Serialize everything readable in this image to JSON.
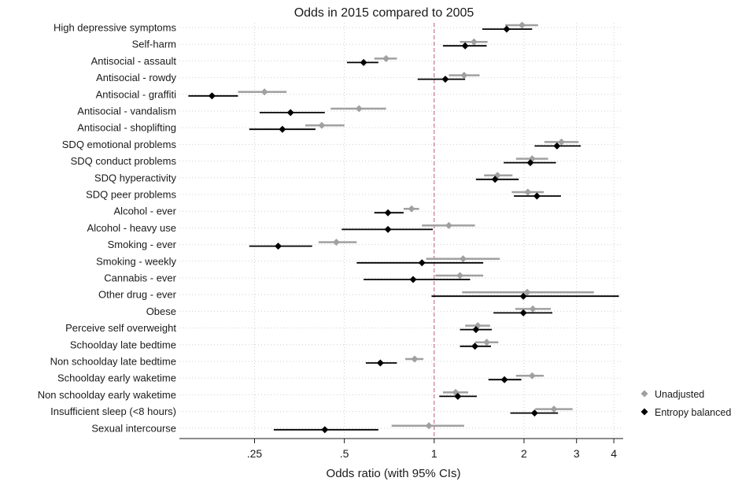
{
  "chart_data": {
    "type": "scatter",
    "subtype": "forest-plot",
    "title": "Odds in 2015 compared to 2005",
    "xlabel": "Odds ratio (with 95% CIs)",
    "ylabel": "",
    "xscale": "log",
    "xlim": [
      0.14,
      4.3
    ],
    "reference_line": 1,
    "xticks": [
      {
        "value": 0.25,
        "label": ".25"
      },
      {
        "value": 0.5,
        "label": ".5"
      },
      {
        "value": 1,
        "label": "1"
      },
      {
        "value": 2,
        "label": "2"
      },
      {
        "value": 3,
        "label": "3"
      },
      {
        "value": 4,
        "label": "4"
      }
    ],
    "grid": true,
    "legend_position": "bottom-right",
    "colors": {
      "unadjusted": "#a0a0a0",
      "balanced": "#000000",
      "reference": "#c05a86",
      "grid": "#d0d0d0"
    },
    "categories": [
      "High depressive symptoms",
      "Self-harm",
      "Antisocial - assault",
      "Antisocial - rowdy",
      "Antisocial - graffiti",
      "Antisocial - vandalism",
      "Antisocial - shoplifting",
      "SDQ emotional problems",
      "SDQ conduct problems",
      "SDQ hyperactivity",
      "SDQ peer problems",
      "Alcohol - ever",
      "Alcohol - heavy use",
      "Smoking - ever",
      "Smoking - weekly",
      "Cannabis - ever",
      "Other drug - ever",
      "Obese",
      "Perceive self overweight",
      "Schoolday late bedtime",
      "Non schoolday late bedtime",
      "Schoolday early waketime",
      "Non schoolday early waketime",
      "Insufficient sleep (<8 hours)",
      "Sexual intercourse"
    ],
    "series": [
      {
        "name": "Unadjusted",
        "marker": "diamond",
        "color": "#a0a0a0",
        "estimate": [
          1.97,
          1.36,
          0.69,
          1.26,
          0.27,
          0.56,
          0.42,
          2.67,
          2.13,
          1.63,
          2.06,
          0.84,
          1.12,
          0.47,
          1.25,
          1.22,
          2.05,
          2.14,
          1.4,
          1.5,
          0.86,
          2.13,
          1.18,
          2.52,
          0.96
        ],
        "ci_low": [
          1.73,
          1.22,
          0.63,
          1.12,
          0.22,
          0.45,
          0.37,
          2.34,
          1.88,
          1.47,
          1.82,
          0.79,
          0.91,
          0.41,
          0.94,
          1.01,
          1.24,
          1.87,
          1.27,
          1.37,
          0.8,
          1.88,
          1.07,
          2.18,
          0.72
        ],
        "ci_high": [
          2.23,
          1.51,
          0.75,
          1.42,
          0.32,
          0.69,
          0.5,
          3.05,
          2.41,
          1.83,
          2.33,
          0.89,
          1.37,
          0.55,
          1.66,
          1.46,
          3.43,
          2.46,
          1.54,
          1.64,
          0.92,
          2.33,
          1.3,
          2.91,
          1.26
        ]
      },
      {
        "name": "Entropy balanced",
        "marker": "diamond",
        "color": "#000000",
        "estimate": [
          1.75,
          1.27,
          0.58,
          1.09,
          0.18,
          0.33,
          0.31,
          2.58,
          2.1,
          1.6,
          2.21,
          0.7,
          0.7,
          0.3,
          0.91,
          0.85,
          1.99,
          1.99,
          1.38,
          1.37,
          0.66,
          1.72,
          1.2,
          2.17,
          0.43
        ],
        "ci_low": [
          1.45,
          1.07,
          0.51,
          0.88,
          0.15,
          0.26,
          0.24,
          2.17,
          1.71,
          1.38,
          1.85,
          0.63,
          0.49,
          0.24,
          0.55,
          0.58,
          0.98,
          1.58,
          1.22,
          1.22,
          0.59,
          1.52,
          1.04,
          1.8,
          0.29
        ],
        "ci_high": [
          2.13,
          1.5,
          0.65,
          1.27,
          0.22,
          0.43,
          0.4,
          3.1,
          2.56,
          1.92,
          2.66,
          0.79,
          0.99,
          0.39,
          1.46,
          1.32,
          4.16,
          2.49,
          1.56,
          1.55,
          0.75,
          1.96,
          1.39,
          2.6,
          0.65
        ]
      }
    ]
  }
}
